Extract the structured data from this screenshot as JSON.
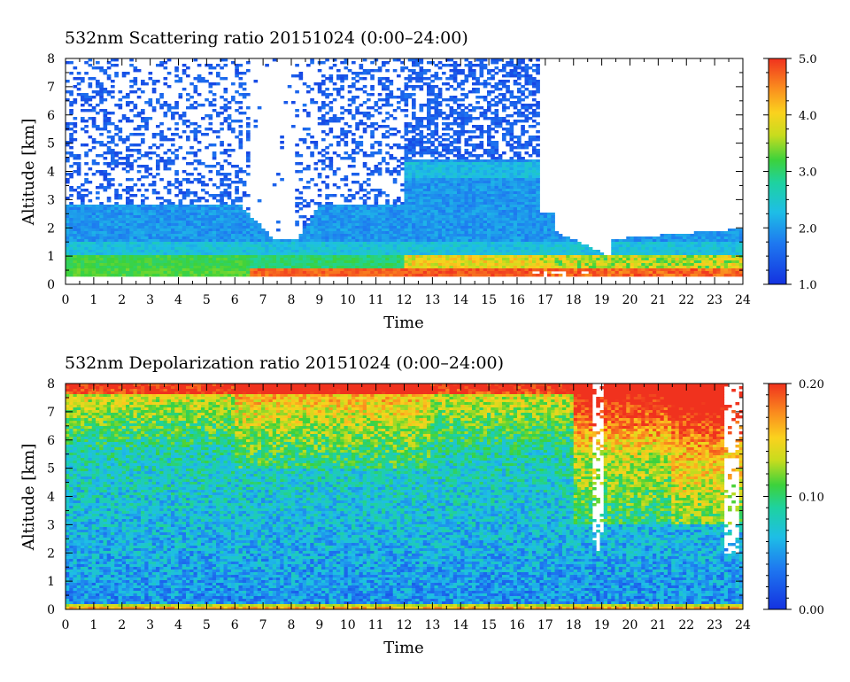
{
  "chart_data": [
    {
      "type": "heatmap",
      "title": "532nm Scattering ratio  20151024 (0:00–24:00)",
      "xlabel": "Time",
      "ylabel": "Altitude [km]",
      "xlim": [
        0,
        24
      ],
      "ylim": [
        0,
        8
      ],
      "x_ticks": [
        "0",
        "1",
        "2",
        "3",
        "4",
        "5",
        "6",
        "7",
        "8",
        "9",
        "10",
        "11",
        "12",
        "13",
        "14",
        "15",
        "16",
        "17",
        "18",
        "19",
        "20",
        "21",
        "22",
        "23",
        "24"
      ],
      "y_ticks": [
        "0",
        "1",
        "2",
        "3",
        "4",
        "5",
        "6",
        "7",
        "8"
      ],
      "colorbar": {
        "min": 1.0,
        "max": 5.0,
        "ticks": [
          "1.0",
          "2.0",
          "3.0",
          "4.0",
          "5.0"
        ],
        "colormap": "rainbow-blue-to-red"
      }
    },
    {
      "type": "heatmap",
      "title": "532nm Depolarization ratio  20151024 (0:00–24:00)",
      "xlabel": "Time",
      "ylabel": "Altitude [km]",
      "xlim": [
        0,
        24
      ],
      "ylim": [
        0,
        8
      ],
      "x_ticks": [
        "0",
        "1",
        "2",
        "3",
        "4",
        "5",
        "6",
        "7",
        "8",
        "9",
        "10",
        "11",
        "12",
        "13",
        "14",
        "15",
        "16",
        "17",
        "18",
        "19",
        "20",
        "21",
        "22",
        "23",
        "24"
      ],
      "y_ticks": [
        "0",
        "1",
        "2",
        "3",
        "4",
        "5",
        "6",
        "7",
        "8"
      ],
      "colorbar": {
        "min": 0.0,
        "max": 0.2,
        "ticks": [
          "0.00",
          "0.10",
          "0.20"
        ],
        "colormap": "rainbow-blue-to-red"
      }
    }
  ]
}
